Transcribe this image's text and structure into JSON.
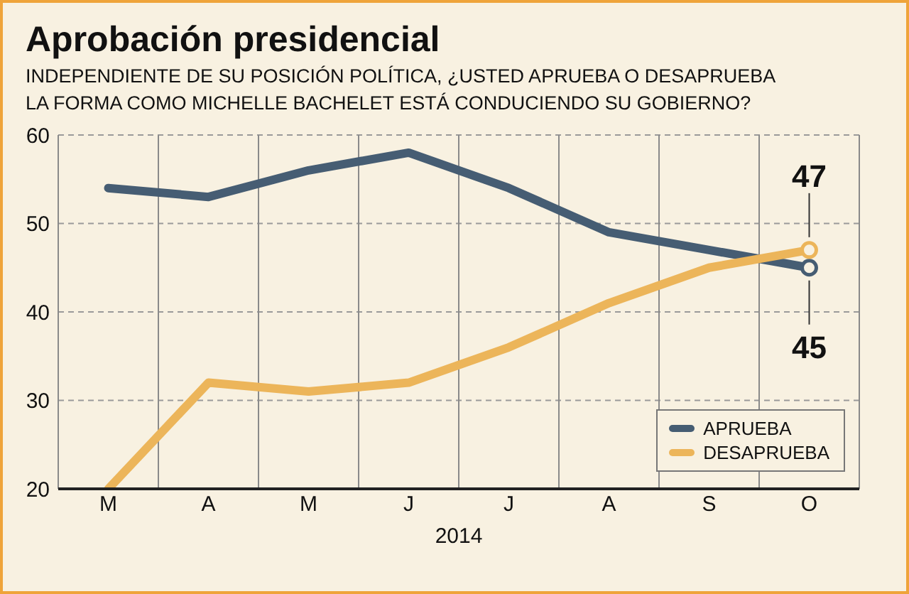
{
  "chart_data": {
    "type": "line",
    "title": "Aprobación presidencial",
    "subtitle": "INDEPENDIENTE DE SU POSICIÓN POLÍTICA, ¿USTED APRUEBA O DESAPRUEBA\nLA FORMA COMO MICHELLE BACHELET ESTÁ CONDUCIENDO SU GOBIERNO?",
    "xlabel": "2014",
    "categories": [
      "M",
      "A",
      "M",
      "J",
      "J",
      "A",
      "S",
      "O"
    ],
    "series": [
      {
        "name": "APRUEBA",
        "color": "#465d73",
        "values": [
          54,
          53,
          56,
          58,
          54,
          49,
          47,
          45
        ],
        "value_labels": [
          null,
          null,
          null,
          null,
          null,
          null,
          null,
          "45"
        ]
      },
      {
        "name": "DESAPRUEBA",
        "color": "#ecb55a",
        "values": [
          20,
          32,
          31,
          32,
          36,
          41,
          45,
          47
        ],
        "value_labels": [
          null,
          null,
          null,
          null,
          null,
          null,
          null,
          "47"
        ]
      }
    ],
    "ylim": [
      20,
      60
    ],
    "yticks": [
      20,
      30,
      40,
      50,
      60
    ],
    "grid": true,
    "legend": "bottom right",
    "line_style": "solid"
  }
}
